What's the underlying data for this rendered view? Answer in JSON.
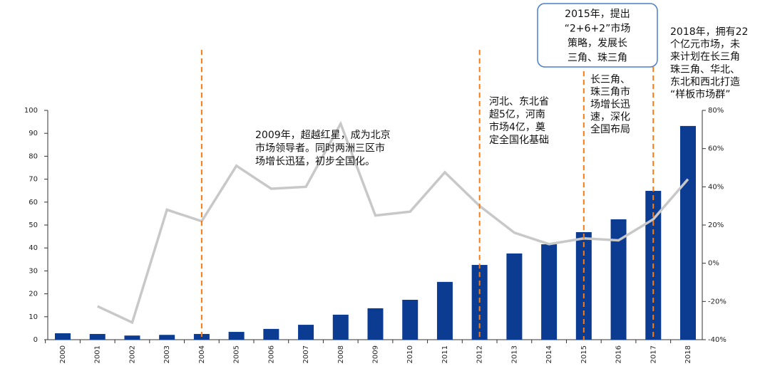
{
  "chart_data": {
    "type": "bar-line",
    "categories": [
      "2000",
      "2001",
      "2002",
      "2003",
      "2004",
      "2005",
      "2006",
      "2007",
      "2008",
      "2009",
      "2010",
      "2011",
      "2012",
      "2013",
      "2014",
      "2015",
      "2016",
      "2017",
      "2018"
    ],
    "series": [
      {
        "type": "bar",
        "color": "#0b3c92",
        "values": [
          2.8,
          2.5,
          1.8,
          2.1,
          2.5,
          3.4,
          4.7,
          6.5,
          10.9,
          13.7,
          17.4,
          25.2,
          32.6,
          37.6,
          41.6,
          46.9,
          52.5,
          64.9,
          93.2
        ]
      },
      {
        "type": "line",
        "axis": "y2",
        "color": "#c8c8c8",
        "values": [
          null,
          -22.5,
          -31,
          28,
          22,
          51,
          39,
          40,
          73,
          25,
          27,
          47.6,
          30,
          16,
          10,
          13,
          12,
          23,
          44
        ]
      }
    ],
    "ylim": [
      0,
      100
    ],
    "yticks": [
      0,
      10,
      20,
      30,
      40,
      50,
      60,
      70,
      80,
      90,
      100
    ],
    "y2lim": [
      -40,
      80
    ],
    "y2ticks": [
      {
        "value": -40,
        "label": "-40%"
      },
      {
        "value": -20,
        "label": "-20%"
      },
      {
        "value": 0,
        "label": "0%"
      },
      {
        "value": 20,
        "label": "20%"
      },
      {
        "value": 40,
        "label": "40%"
      },
      {
        "value": 60,
        "label": "60%"
      },
      {
        "value": 80,
        "label": "80%"
      }
    ],
    "markers": [
      "2004",
      "2012",
      "2015",
      "2017"
    ],
    "marker_color": "#f07d1e",
    "annotations": [
      {
        "lines": [
          "2009年，超越红星，成为北京",
          "市场领导者。同时两洲三区市",
          "场增长迅猛，初步全国化。"
        ]
      },
      {
        "lines": [
          "河北、东北省",
          "超5亿，河南",
          "市场4亿，奠",
          "定全国化基础"
        ]
      },
      {
        "lines": [
          "长三角、",
          "珠三角市",
          "场增长迅",
          "速，深化",
          "全国布局"
        ]
      },
      {
        "lines": [
          "2015年，提出",
          "“2+6+2”市场",
          "策略，发展长",
          "三角、珠三角"
        ],
        "boxed": true
      },
      {
        "lines": [
          "2018年，拥有22",
          "个亿元市场，未",
          "来计划在长三角",
          "珠三角、华北、",
          "东北和西北打造",
          "“样板市场群”"
        ]
      }
    ]
  }
}
